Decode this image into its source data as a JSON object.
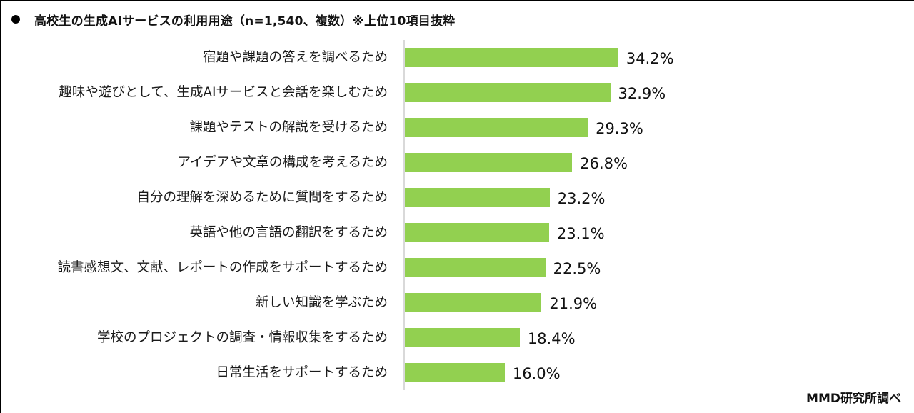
{
  "title": {
    "bullet": "●",
    "text": "高校生の生成AIサービスの利用用途（n=1,540、複数）※上位10項目抜粋"
  },
  "source": "MMD研究所調べ",
  "colors": {
    "bar": "#92D050",
    "axis": "#d9d9d9",
    "frame": "#000000"
  },
  "chart_data": {
    "type": "bar",
    "orientation": "horizontal",
    "title": "高校生の生成AIサービスの利用用途（n=1,540、複数）※上位10項目抜粋",
    "xlabel": "",
    "ylabel": "",
    "unit": "%",
    "xlim": [
      0,
      80
    ],
    "grid": false,
    "legend": null,
    "categories": [
      "宿題や課題の答えを調べるため",
      "趣味や遊びとして、生成AIサービスと会話を楽しむため",
      "課題やテストの解説を受けるため",
      "アイデアや文章の構成を考えるため",
      "自分の理解を深めるために質問をするため",
      "英語や他の言語の翻訳をするため",
      "読書感想文、文献、レポートの作成をサポートするため",
      "新しい知識を学ぶため",
      "学校のプロジェクトの調査・情報収集をするため",
      "日常生活をサポートするため"
    ],
    "values": [
      34.2,
      32.9,
      29.3,
      26.8,
      23.2,
      23.1,
      22.5,
      21.9,
      18.4,
      16.0
    ],
    "value_labels": [
      "34.2%",
      "32.9%",
      "29.3%",
      "26.8%",
      "23.2%",
      "23.1%",
      "22.5%",
      "21.9%",
      "18.4%",
      "16.0%"
    ],
    "annotations": [
      "MMD研究所調べ"
    ]
  }
}
